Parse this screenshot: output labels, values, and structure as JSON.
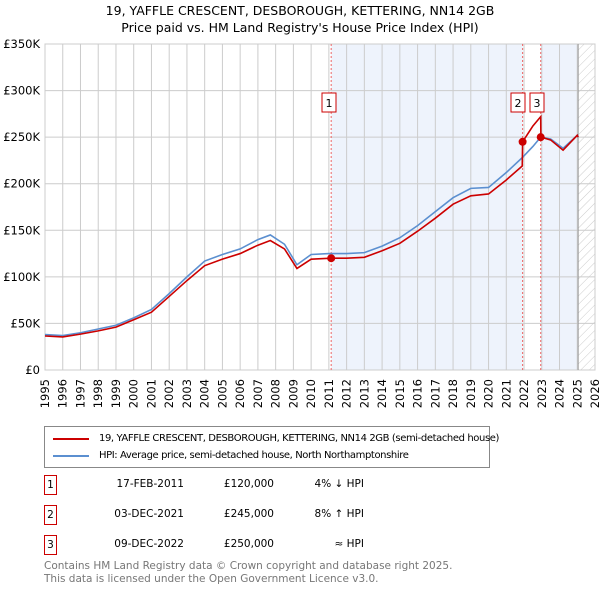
{
  "chart_data": {
    "type": "line",
    "title": "19, YAFFLE CRESCENT, DESBOROUGH, KETTERING, NN14 2GB",
    "subtitle": "Price paid vs. HM Land Registry's House Price Index (HPI)",
    "xlim": [
      1995,
      2026
    ],
    "ylim": [
      0,
      350000
    ],
    "x_ticks": [
      "1995",
      "1996",
      "1997",
      "1998",
      "1999",
      "2000",
      "2001",
      "2002",
      "2003",
      "2004",
      "2005",
      "2006",
      "2007",
      "2008",
      "2009",
      "2010",
      "2011",
      "2012",
      "2013",
      "2014",
      "2015",
      "2016",
      "2017",
      "2018",
      "2019",
      "2020",
      "2021",
      "2022",
      "2023",
      "2024",
      "2025",
      "2026"
    ],
    "y_ticks": [
      {
        "v": 0,
        "l": "£0"
      },
      {
        "v": 50000,
        "l": "£50K"
      },
      {
        "v": 100000,
        "l": "£100K"
      },
      {
        "v": 150000,
        "l": "£150K"
      },
      {
        "v": 200000,
        "l": "£200K"
      },
      {
        "v": 250000,
        "l": "£250K"
      },
      {
        "v": 300000,
        "l": "£300K"
      },
      {
        "v": 350000,
        "l": "£350K"
      }
    ],
    "grid": true,
    "series": [
      {
        "name": "HPI: Average price, semi-detached house, North Northamptonshire",
        "color": "#5b8fd0",
        "x": [
          1995,
          1996,
          1997,
          1998,
          1999,
          2000,
          2001,
          2002,
          2003,
          2004,
          2005,
          2006,
          2007,
          2007.7,
          2008.5,
          2009.2,
          2010,
          2011,
          2012,
          2013,
          2014,
          2015,
          2016,
          2017,
          2018,
          2019,
          2020,
          2021,
          2021.9,
          2022.5,
          2022.94,
          2023.5,
          2024.2,
          2025,
          2025.05
        ],
        "y": [
          38000,
          37000,
          40000,
          44000,
          48000,
          56000,
          65000,
          82000,
          100000,
          117000,
          124000,
          130000,
          140000,
          145000,
          135000,
          113000,
          124000,
          125000,
          125000,
          126000,
          133000,
          142000,
          155000,
          170000,
          185000,
          195000,
          196000,
          212000,
          228000,
          240000,
          250000,
          248000,
          238000,
          252000,
          250000
        ]
      },
      {
        "name": "19, YAFFLE CRESCENT, DESBOROUGH, KETTERING, NN14 2GB (semi-detached house)",
        "color": "#cc0000",
        "x": [
          1995,
          1996,
          1997,
          1998,
          1999,
          2000,
          2001,
          2002,
          2003,
          2004,
          2005,
          2006,
          2007,
          2007.7,
          2008.5,
          2009.2,
          2010,
          2011.13,
          2012,
          2013,
          2014,
          2015,
          2016,
          2017,
          2018,
          2019,
          2020,
          2021,
          2021.9,
          2021.92,
          2022.5,
          2022.94,
          2022.95,
          2023.5,
          2024.2,
          2025,
          2025.05
        ],
        "y": [
          36500,
          35500,
          38500,
          42000,
          46000,
          54000,
          62000,
          79000,
          96000,
          112000,
          119000,
          125000,
          134000,
          139000,
          130000,
          109000,
          119000,
          120000,
          120000,
          121000,
          128000,
          136000,
          149000,
          163000,
          178000,
          187000,
          189000,
          204000,
          219000,
          245000,
          262000,
          272000,
          250000,
          247000,
          236000,
          252000,
          250000
        ]
      }
    ],
    "sales": [
      {
        "n": "1",
        "x": 2011.13,
        "y": 120000,
        "date": "17-FEB-2011",
        "price": "£120,000",
        "hpi": "4% ↓ HPI"
      },
      {
        "n": "2",
        "x": 2021.92,
        "y": 245000,
        "date": "03-DEC-2021",
        "price": "£245,000",
        "hpi": "8% ↑ HPI"
      },
      {
        "n": "3",
        "x": 2022.94,
        "y": 250000,
        "date": "09-DEC-2022",
        "price": "£250,000",
        "hpi": "≈ HPI"
      }
    ],
    "shaded": [
      [
        2011.13,
        2021.92
      ],
      [
        2022.94,
        2025.05
      ]
    ],
    "hatched_from": 2025.05
  },
  "legend": {
    "red": "19, YAFFLE CRESCENT, DESBOROUGH, KETTERING, NN14 2GB (semi-detached house)",
    "blue": "HPI: Average price, semi-detached house, North Northamptonshire"
  },
  "footer": {
    "line1": "Contains HM Land Registry data © Crown copyright and database right 2025.",
    "line2": "This data is licensed under the Open Government Licence v3.0."
  }
}
